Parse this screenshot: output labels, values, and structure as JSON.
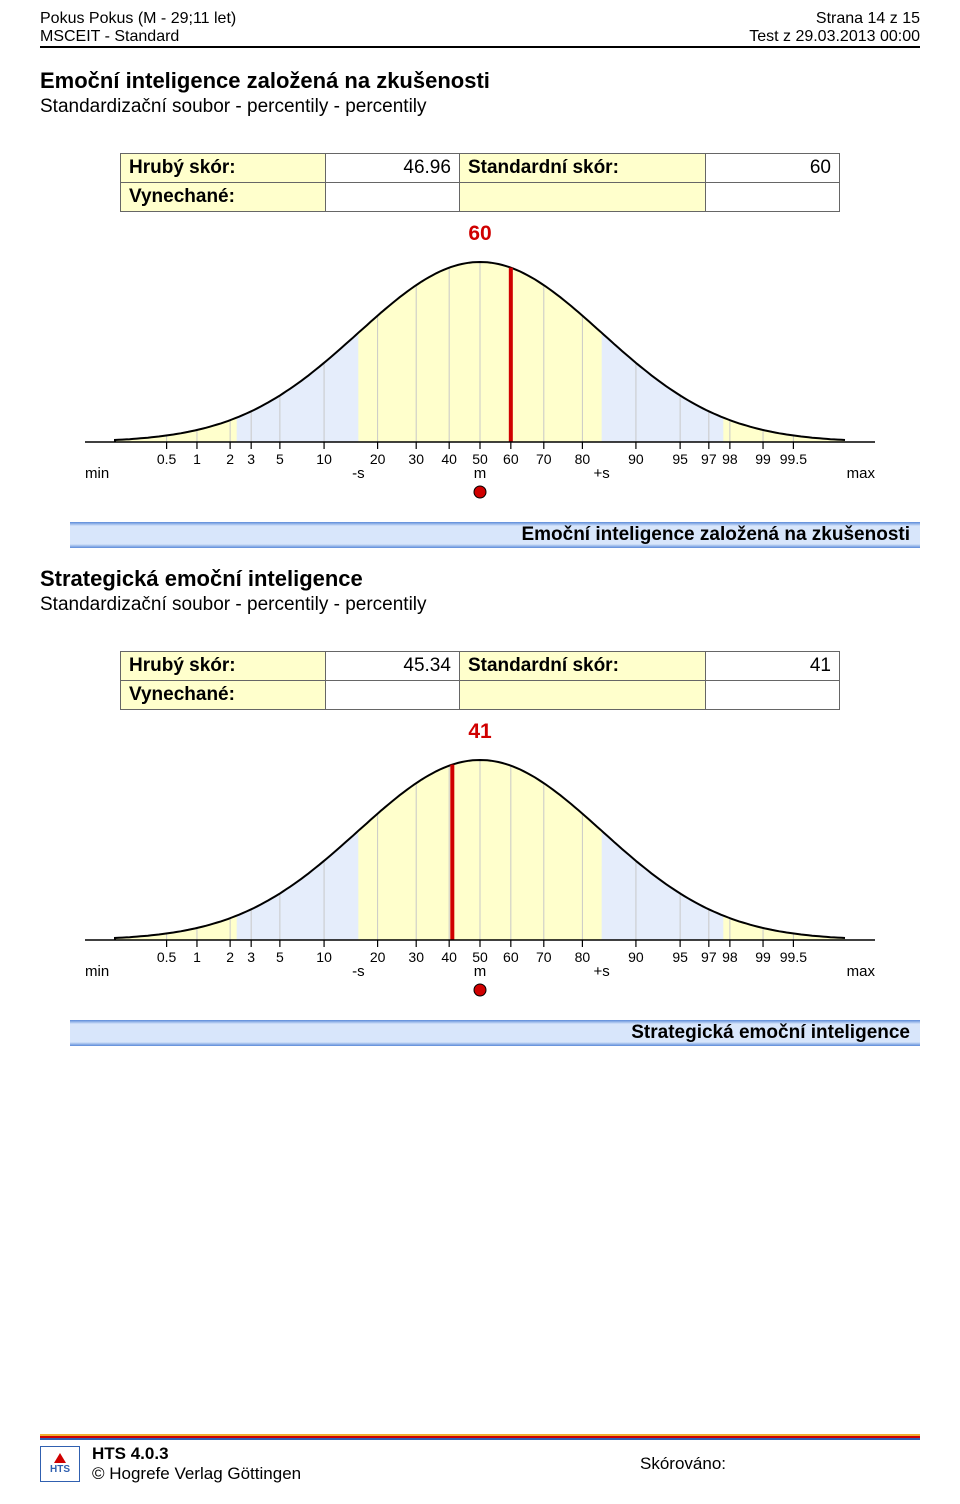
{
  "header": {
    "name_line": "Pokus Pokus (M - 29;11 let)",
    "page_line": "Strana 14 z 15",
    "test_line_left": "MSCEIT - Standard",
    "test_line_right": "Test z 29.03.2013 00:00"
  },
  "sections": [
    {
      "title": "Emoční inteligence založená na zkušenosti",
      "subtitle": "Standardizační soubor - percentily  -  percentily",
      "raw_label": "Hrubý skór:",
      "raw_value": "46.96",
      "std_label": "Standardní skór:",
      "std_value": "60",
      "omit_label": "Vynechané:",
      "omit_value": "",
      "chart": {
        "value": 60,
        "value_text": "60",
        "ticks_labels": [
          "0.5",
          "1",
          "2",
          "3",
          "5",
          "10",
          "20",
          "30",
          "40",
          "50",
          "60",
          "70",
          "80",
          "90",
          "95",
          "97",
          "98",
          "99",
          "99.5"
        ],
        "min_label": "min",
        "max_label": "max",
        "minus_s_label": "-s",
        "m_label": "m",
        "plus_s_label": "+s",
        "bell_fill": "#ffffcc",
        "band_fill": "#e5edfb",
        "axis_color": "#000000",
        "grid_color": "#c8c8c8",
        "marker_line_color": "#d00000",
        "dot_fill": "#d00000",
        "background": "#ffffff",
        "font_size_ticks": 14,
        "font_size_labels": 15,
        "line_width_axis": 1.5,
        "line_width_bell": 2
      },
      "band_text": "Emoční inteligence založená na zkušenosti"
    },
    {
      "title": "Strategická emoční inteligence",
      "subtitle": "Standardizační soubor - percentily  -  percentily",
      "raw_label": "Hrubý skór:",
      "raw_value": "45.34",
      "std_label": "Standardní skór:",
      "std_value": "41",
      "omit_label": "Vynechané:",
      "omit_value": "",
      "chart": {
        "value": 41,
        "value_text": "41",
        "ticks_labels": [
          "0.5",
          "1",
          "2",
          "3",
          "5",
          "10",
          "20",
          "30",
          "40",
          "50",
          "60",
          "70",
          "80",
          "90",
          "95",
          "97",
          "98",
          "99",
          "99.5"
        ],
        "min_label": "min",
        "max_label": "max",
        "minus_s_label": "-s",
        "m_label": "m",
        "plus_s_label": "+s",
        "bell_fill": "#ffffcc",
        "band_fill": "#e5edfb",
        "axis_color": "#000000",
        "grid_color": "#c8c8c8",
        "marker_line_color": "#d00000",
        "dot_fill": "#d00000",
        "background": "#ffffff",
        "font_size_ticks": 14,
        "font_size_labels": 15,
        "line_width_axis": 1.5,
        "line_width_bell": 2
      },
      "band_text": "Strategická emoční inteligence"
    }
  ],
  "footer": {
    "product": "HTS 4.0.3",
    "copyright": "© Hogrefe Verlag Göttingen",
    "scored": "Skórováno:"
  },
  "colors": {
    "blue_band_light": "#d8e6fb",
    "blue_band_edge": "#5b8bd9"
  }
}
